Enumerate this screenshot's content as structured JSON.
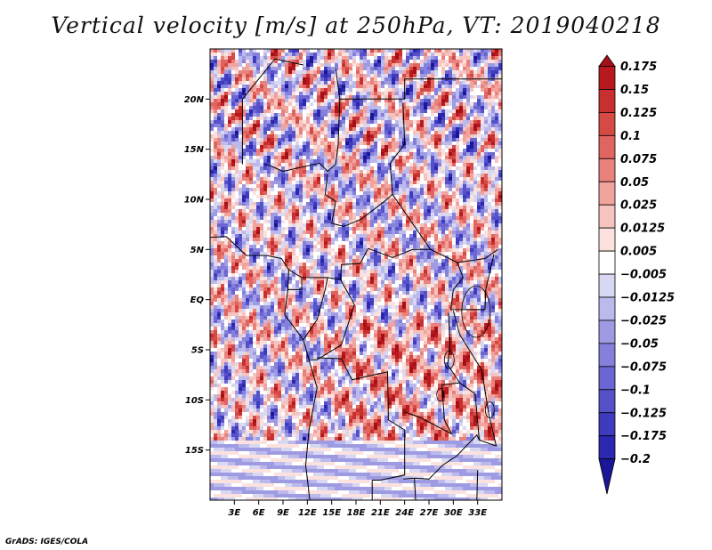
{
  "title": "Vertical velocity [m/s] at 250hPa, VT: 2019040218",
  "credit": "GrADS: IGES/COLA",
  "chart_data": {
    "type": "heatmap",
    "title": "Vertical velocity [m/s] at 250hPa, VT: 2019040218",
    "variable": "Vertical velocity",
    "units": "m/s",
    "level": "250hPa",
    "valid_time": "2019040218",
    "x_range_lon": [
      0,
      36
    ],
    "y_range_lat": [
      -20,
      25
    ],
    "x_ticks": [
      {
        "value": 3,
        "label": "3E"
      },
      {
        "value": 6,
        "label": "6E"
      },
      {
        "value": 9,
        "label": "9E"
      },
      {
        "value": 12,
        "label": "12E"
      },
      {
        "value": 15,
        "label": "15E"
      },
      {
        "value": 18,
        "label": "18E"
      },
      {
        "value": 21,
        "label": "21E"
      },
      {
        "value": 24,
        "label": "24E"
      },
      {
        "value": 27,
        "label": "27E"
      },
      {
        "value": 30,
        "label": "30E"
      },
      {
        "value": 33,
        "label": "33E"
      }
    ],
    "y_ticks": [
      {
        "value": 20,
        "label": "20N"
      },
      {
        "value": 15,
        "label": "15N"
      },
      {
        "value": 10,
        "label": "10N"
      },
      {
        "value": 5,
        "label": "5N"
      },
      {
        "value": 0,
        "label": "EQ"
      },
      {
        "value": -5,
        "label": "5S"
      },
      {
        "value": -10,
        "label": "10S"
      },
      {
        "value": -15,
        "label": "15S"
      }
    ],
    "colorbar": {
      "labels": [
        "0.175",
        "0.15",
        "0.125",
        "0.1",
        "0.075",
        "0.05",
        "0.025",
        "0.0125",
        "0.005",
        "−0.005",
        "−0.0125",
        "−0.025",
        "−0.05",
        "−0.075",
        "−0.1",
        "−0.125",
        "−0.175",
        "−0.2"
      ],
      "colors": [
        "#a50f15",
        "#b8191f",
        "#c8302f",
        "#d64a45",
        "#e06560",
        "#e9827d",
        "#f1a39e",
        "#f7c3bf",
        "#fbe2df",
        "#ffffff",
        "#d9d8f3",
        "#bcbaec",
        "#9e9be3",
        "#8580dc",
        "#6b66d2",
        "#5551c9",
        "#3f3bbf",
        "#2c27b1",
        "#1a1697"
      ]
    }
  }
}
